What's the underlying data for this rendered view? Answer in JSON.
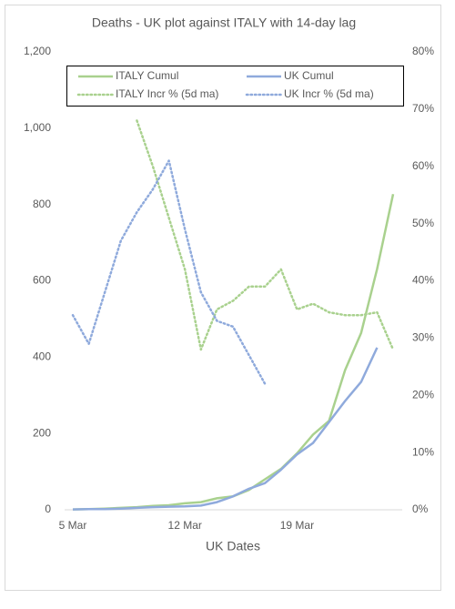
{
  "chart_data": {
    "type": "line",
    "title": "Deaths - UK plot against ITALY with 14-day lag",
    "x_label": "UK Dates",
    "categories": [
      "5 Mar",
      null,
      null,
      null,
      null,
      null,
      null,
      "12 Mar",
      null,
      null,
      null,
      null,
      null,
      null,
      "19 Mar",
      null,
      null,
      null,
      null,
      null,
      null
    ],
    "ylim": [
      0,
      1200
    ],
    "yticks": [
      0,
      200,
      400,
      600,
      800,
      {
        "value": 1000,
        "label": "1,000"
      },
      {
        "value": 1200,
        "label": "1,200"
      }
    ],
    "y2lim": [
      0,
      80
    ],
    "y2ticks": [
      {
        "value": 0,
        "label": "0%"
      },
      {
        "value": 10,
        "label": "10%"
      },
      {
        "value": 20,
        "label": "20%"
      },
      {
        "value": 30,
        "label": "30%"
      },
      {
        "value": 40,
        "label": "40%"
      },
      {
        "value": 50,
        "label": "50%"
      },
      {
        "value": 60,
        "label": "60%"
      },
      {
        "value": 70,
        "label": "70%"
      },
      {
        "value": 80,
        "label": "80%"
      }
    ],
    "series": [
      {
        "name": "ITALY Cumul",
        "color": "#a9d18e",
        "style": "solid",
        "axis": "y",
        "values": [
          1,
          2,
          3,
          5,
          7,
          10,
          12,
          17,
          20,
          30,
          35,
          52,
          80,
          107,
          148,
          197,
          233,
          366,
          463,
          631,
          827
        ]
      },
      {
        "name": "UK  Cumul",
        "color": "#8faadc",
        "style": "solid",
        "axis": "y",
        "values": [
          1,
          2,
          2,
          3,
          5,
          7,
          8,
          9,
          11,
          20,
          35,
          55,
          70,
          105,
          145,
          175,
          230,
          285,
          335,
          425,
          null
        ]
      },
      {
        "name": "ITALY Incr % (5d ma)",
        "color": "#a9d18e",
        "style": "dotted",
        "axis": "y2",
        "values": [
          null,
          null,
          null,
          null,
          68,
          60,
          51,
          42,
          28,
          35,
          36.5,
          39,
          39,
          42,
          35,
          36,
          34.5,
          34,
          34,
          34.5,
          28
        ]
      },
      {
        "name": "UK  Incr % (5d ma)",
        "color": "#8faadc",
        "style": "dotted",
        "axis": "y2",
        "values": [
          34,
          29,
          38,
          47,
          52,
          56,
          61,
          49,
          38,
          33,
          32,
          27,
          22,
          null,
          null,
          null,
          null,
          null,
          null,
          null,
          null
        ]
      }
    ],
    "legend": "top"
  }
}
